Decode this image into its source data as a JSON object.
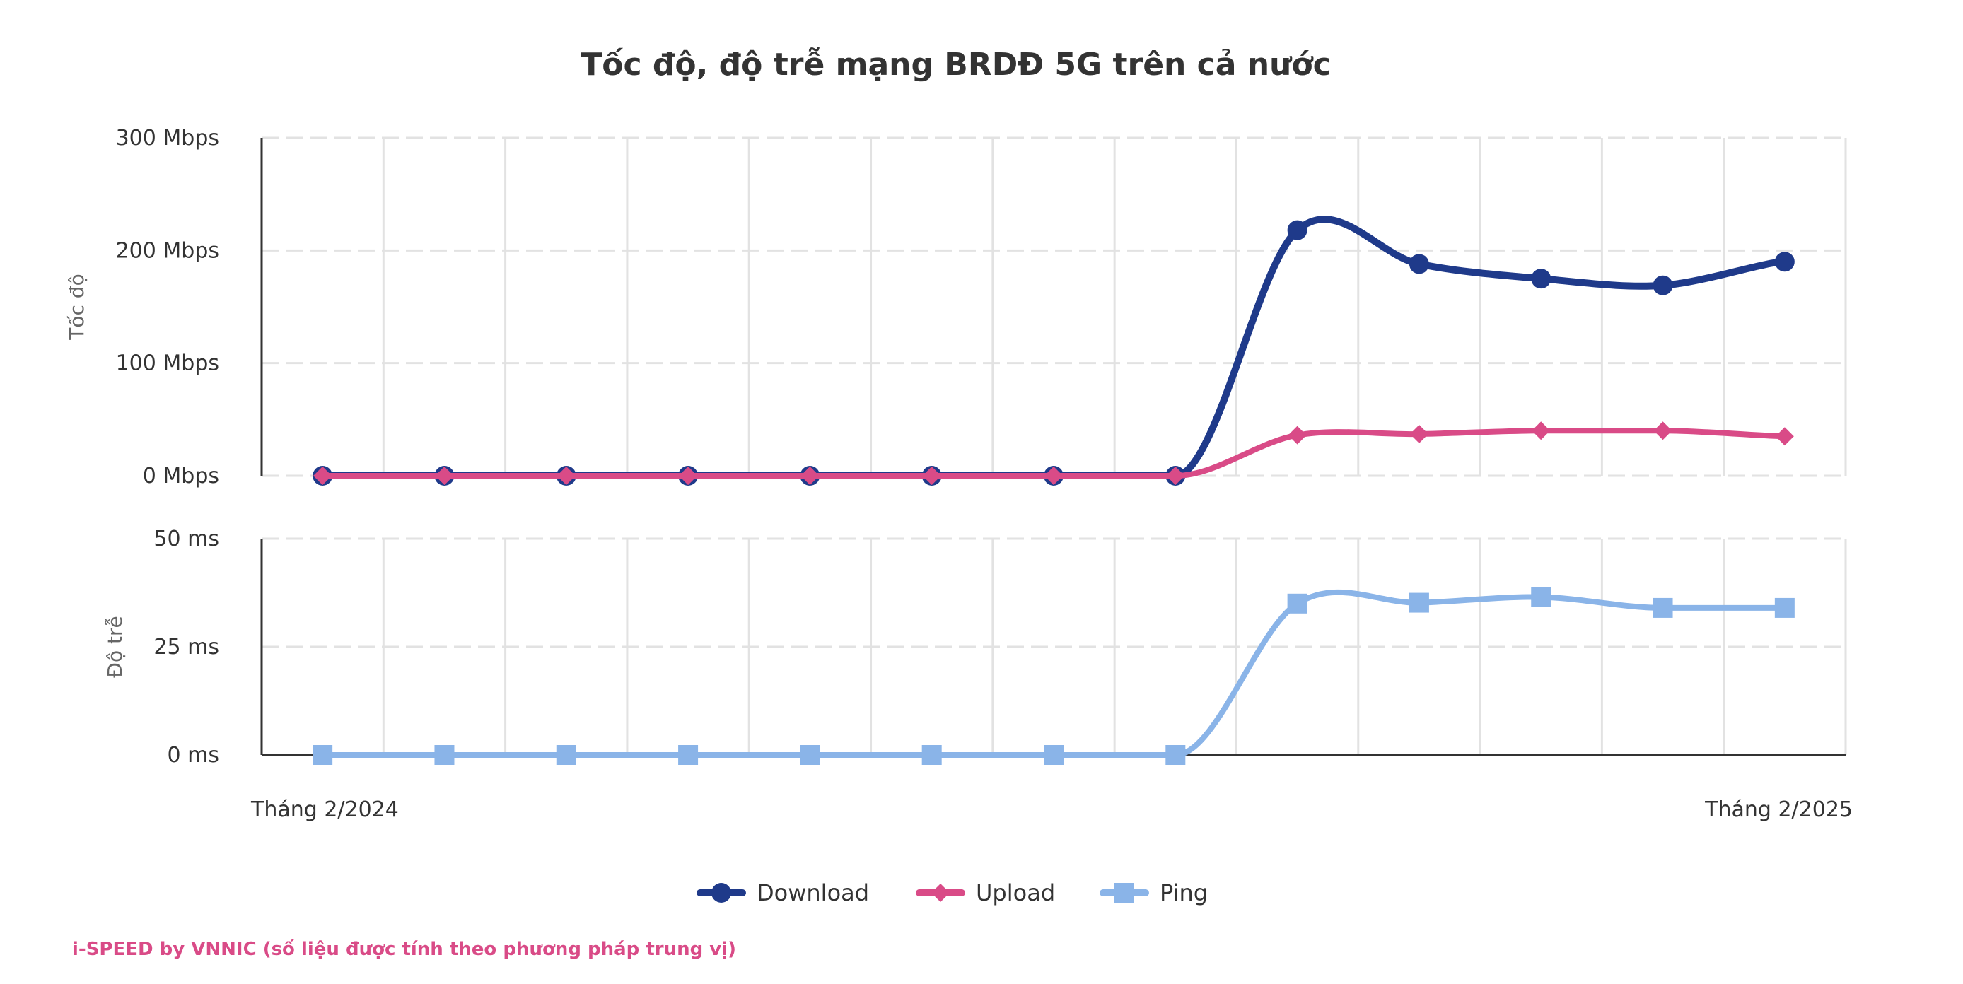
{
  "colors": {
    "download": "#1f3a8a",
    "upload": "#d94b87",
    "ping": "#8ab4e8",
    "grid": "#e2e2e2",
    "axis": "#333333",
    "credit": "#d94b87"
  },
  "chart_data": {
    "type": "line",
    "title": "Tốc độ, độ trễ mạng BRDĐ 5G trên cả nước",
    "x_start_label": "Tháng 2/2024",
    "x_end_label": "Tháng 2/2025",
    "x": [
      1,
      2,
      3,
      4,
      5,
      6,
      7,
      8,
      9,
      10,
      11,
      12,
      13
    ],
    "panels": [
      {
        "name": "speed",
        "ylabel": "Tốc độ",
        "ylim": [
          0,
          300
        ],
        "yticks": [
          0,
          100,
          200,
          300
        ],
        "ytick_labels": [
          "0 Mbps",
          "100 Mbps",
          "200 Mbps",
          "300 Mbps"
        ],
        "series": [
          {
            "name": "Download",
            "marker": "circle",
            "values": [
              0,
              0,
              0,
              0,
              0,
              0,
              0,
              0,
              218,
              188,
              175,
              169,
              190
            ]
          },
          {
            "name": "Upload",
            "marker": "diamond",
            "values": [
              0,
              0,
              0,
              0,
              0,
              0,
              0,
              0,
              36,
              37,
              40,
              40,
              35
            ]
          }
        ]
      },
      {
        "name": "latency",
        "ylabel": "Độ trễ",
        "ylim": [
          0,
          50
        ],
        "yticks": [
          0,
          25,
          50
        ],
        "ytick_labels": [
          "0 ms",
          "25 ms",
          "50 ms"
        ],
        "series": [
          {
            "name": "Ping",
            "marker": "square",
            "values": [
              0,
              0,
              0,
              0,
              0,
              0,
              0,
              0,
              35,
              35.2,
              36.5,
              34,
              34
            ]
          }
        ]
      }
    ],
    "legend": [
      "Download",
      "Upload",
      "Ping"
    ],
    "legend_position": "bottom-center",
    "grid": true
  },
  "credit": "i-SPEED by VNNIC (số liệu được tính theo phương pháp trung vị)"
}
